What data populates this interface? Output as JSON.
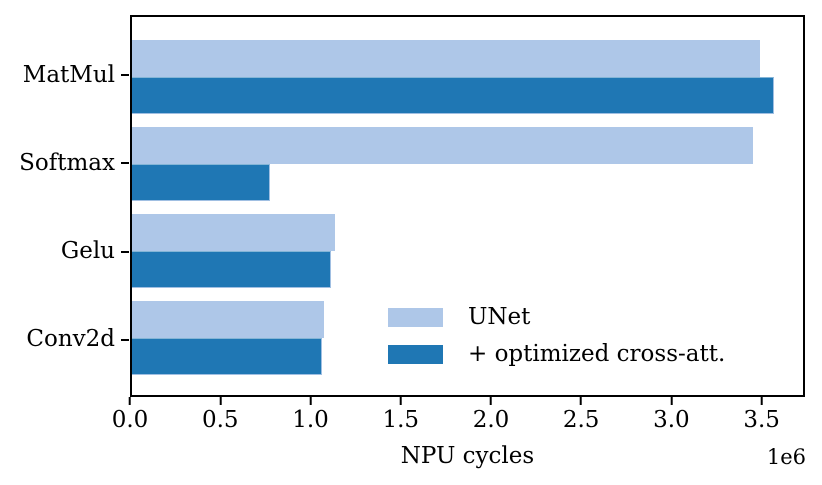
{
  "chart_data": {
    "type": "bar",
    "orientation": "horizontal",
    "title": "",
    "xlabel": "NPU cycles",
    "x_scale_offset_label": "1e6",
    "categories": [
      "MatMul",
      "Softmax",
      "Gelu",
      "Conv2d"
    ],
    "series": [
      {
        "name": "UNet",
        "color": "#aec7e8",
        "values": [
          3500000,
          3460000,
          1130000,
          1070000
        ]
      },
      {
        "name": "+ optimized cross-att.",
        "color": "#1f77b4",
        "values": [
          3580000,
          770000,
          1110000,
          1060000
        ]
      }
    ],
    "xlim": [
      0,
      3740000
    ],
    "xticks": [
      0,
      500000,
      1000000,
      1500000,
      2000000,
      2500000,
      3000000,
      3500000
    ],
    "xtick_labels": [
      "0.0",
      "0.5",
      "1.0",
      "1.5",
      "2.0",
      "2.5",
      "3.0",
      "3.5"
    ],
    "legend": {
      "position": "inside-lower-center-right",
      "frame": false,
      "entries": [
        "UNet",
        "+ optimized cross-att."
      ]
    },
    "grid": false,
    "axis_color": "#000000",
    "background_color": "#ffffff"
  }
}
